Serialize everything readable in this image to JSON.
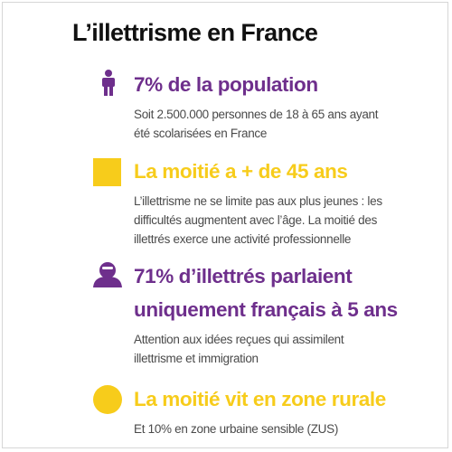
{
  "title": "L’illettrisme en France",
  "colors": {
    "purple": "#6e2f8c",
    "yellow": "#f7cc1b",
    "text": "#4a4a4a",
    "title": "#111111"
  },
  "items": [
    {
      "icon": "person-icon",
      "heading_lines": [
        "7% de la population"
      ],
      "description_lines": [
        "Soit 2.500.000 personnes de 18 à 65 ans ayant",
        "été scolarisées en France"
      ]
    },
    {
      "icon": "square-icon",
      "heading_lines": [
        "La moitié a + de 45 ans"
      ],
      "description_lines": [
        "L’illettrisme ne se limite pas aux plus jeunes : les",
        "difficultés augmentent avec l’âge. La moitié des",
        "illettrés exerce une activité professionnelle"
      ]
    },
    {
      "icon": "user-avatar-icon",
      "heading_lines": [
        "71% d’illettrés parlaient",
        "uniquement français à 5 ans"
      ],
      "description_lines": [
        "Attention aux idées reçues qui assimilent",
        "illettrisme et immigration"
      ]
    },
    {
      "icon": "circle-icon",
      "heading_lines": [
        "La moitié vit en zone rurale"
      ],
      "description_lines": [
        "Et 10% en zone urbaine sensible (ZUS)"
      ]
    }
  ]
}
